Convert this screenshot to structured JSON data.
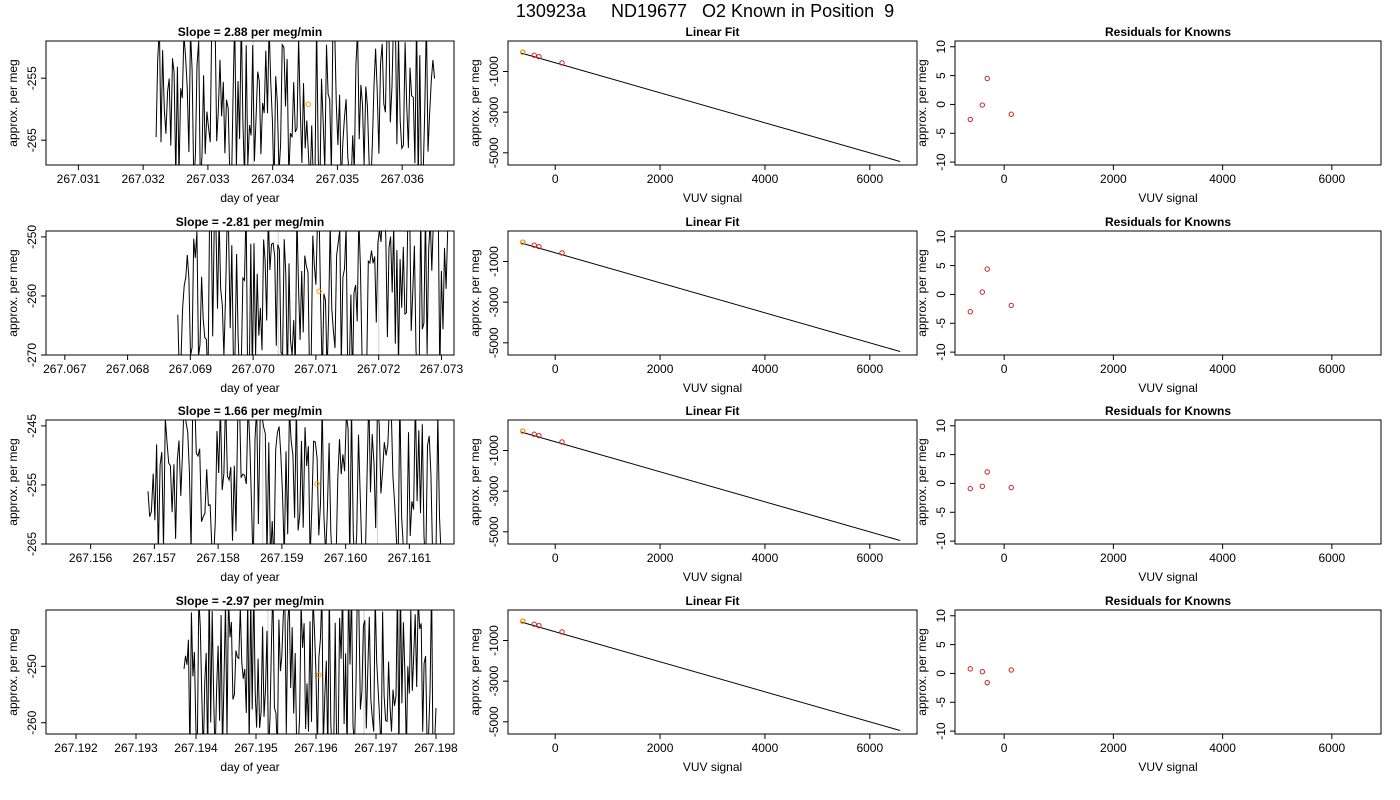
{
  "page": {
    "title": "130923a     ND19677   O2 Known in Position  9"
  },
  "colors": {
    "line": "#000000",
    "residual_point": "#cc2222",
    "highlight_point": "#ff9900",
    "vertical_marker": "#cfcfcf"
  },
  "chart_data": [
    {
      "row": 1,
      "type": "line",
      "title": "Slope =  2.88  per meg/min",
      "xlabel": "day of year",
      "ylabel": "approx. per meg",
      "xlim": [
        267.0305,
        267.0368
      ],
      "ylim": [
        -269,
        -249
      ],
      "xticks": [
        "267.031",
        "267.032",
        "267.033",
        "267.034",
        "267.035",
        "267.036"
      ],
      "yticks": [
        "-255",
        "-265"
      ],
      "x_start": 267.0322,
      "x_end": 267.0365,
      "markers_x": [
        267.0337
      ],
      "highlight": {
        "x": 267.03455,
        "y": -259.2
      }
    },
    {
      "row": 2,
      "type": "line",
      "title": "Slope =  -2.81  per meg/min",
      "xlabel": "day of year",
      "ylabel": "approx. per meg",
      "xlim": [
        267.0667,
        267.0732
      ],
      "ylim": [
        -270,
        -249
      ],
      "xticks": [
        "267.067",
        "267.068",
        "267.069",
        "267.070",
        "267.071",
        "267.072",
        "267.073"
      ],
      "yticks": [
        "-250",
        "-260",
        "-270"
      ],
      "x_start": 267.0688,
      "x_end": 267.0731,
      "markers_x": [
        267.0704,
        267.072
      ],
      "highlight": {
        "x": 267.07105,
        "y": -259.2
      }
    },
    {
      "row": 3,
      "type": "line",
      "title": "Slope =  1.66  per meg/min",
      "xlabel": "day of year",
      "ylabel": "approx. per meg",
      "xlim": [
        267.1553,
        267.1617
      ],
      "ylim": [
        -265,
        -244
      ],
      "xticks": [
        "267.156",
        "267.157",
        "267.158",
        "267.159",
        "267.160",
        "267.161"
      ],
      "yticks": [
        "-245",
        "-255",
        "-265"
      ],
      "x_start": 267.1569,
      "x_end": 267.1615,
      "markers_x": [
        267.1587,
        267.1605
      ],
      "highlight": {
        "x": 267.15955,
        "y": -254.8
      }
    },
    {
      "row": 4,
      "type": "line",
      "title": "Slope =  -2.97  per meg/min",
      "xlabel": "day of year",
      "ylabel": "approx. per meg",
      "xlim": [
        267.1915,
        267.1983
      ],
      "ylim": [
        -262,
        -240
      ],
      "xticks": [
        "267.192",
        "267.193",
        "267.194",
        "267.195",
        "267.196",
        "267.197",
        "267.198"
      ],
      "yticks": [
        "-250",
        "-260"
      ],
      "x_start": 267.1938,
      "x_end": 267.198,
      "markers_x": [
        267.1952,
        267.1968
      ],
      "highlight": {
        "x": 267.19605,
        "y": -251.5
      }
    },
    {
      "row": 1,
      "type": "scatter",
      "title": "Linear Fit",
      "xlabel": "VUV signal",
      "ylabel": "approx. per meg",
      "xlim": [
        -900,
        6900
      ],
      "ylim": [
        -5600,
        500
      ],
      "xticks": [
        0,
        2000,
        4000,
        6000
      ],
      "yticks": [
        -1000,
        -3000,
        -5000
      ],
      "fit_line": {
        "x": [
          -650,
          6580
        ],
        "y": [
          -90,
          -5430
        ]
      },
      "points": {
        "x": [
          -620,
          -400,
          -310,
          130
        ],
        "y": [
          -50,
          -200,
          -270,
          -580
        ]
      },
      "highlight": {
        "x": -620,
        "y": -50
      }
    },
    {
      "row": 2,
      "type": "scatter",
      "title": "Linear Fit",
      "xlabel": "VUV signal",
      "ylabel": "approx. per meg",
      "xlim": [
        -900,
        6900
      ],
      "ylim": [
        -5600,
        500
      ],
      "xticks": [
        0,
        2000,
        4000,
        6000
      ],
      "yticks": [
        -1000,
        -3000,
        -5000
      ],
      "fit_line": {
        "x": [
          -650,
          6580
        ],
        "y": [
          -90,
          -5430
        ]
      },
      "points": {
        "x": [
          -620,
          -400,
          -310,
          130
        ],
        "y": [
          -50,
          -200,
          -270,
          -580
        ]
      },
      "highlight": {
        "x": -620,
        "y": -50
      }
    },
    {
      "row": 3,
      "type": "scatter",
      "title": "Linear Fit",
      "xlabel": "VUV signal",
      "ylabel": "approx. per meg",
      "xlim": [
        -900,
        6900
      ],
      "ylim": [
        -5600,
        500
      ],
      "xticks": [
        0,
        2000,
        4000,
        6000
      ],
      "yticks": [
        -1000,
        -3000,
        -5000
      ],
      "fit_line": {
        "x": [
          -650,
          6580
        ],
        "y": [
          -90,
          -5430
        ]
      },
      "points": {
        "x": [
          -620,
          -400,
          -310,
          130
        ],
        "y": [
          -50,
          -200,
          -270,
          -580
        ]
      },
      "highlight": {
        "x": -620,
        "y": -50
      }
    },
    {
      "row": 4,
      "type": "scatter",
      "title": "Linear Fit",
      "xlabel": "VUV signal",
      "ylabel": "approx. per meg",
      "xlim": [
        -900,
        6900
      ],
      "ylim": [
        -5600,
        500
      ],
      "xticks": [
        0,
        2000,
        4000,
        6000
      ],
      "yticks": [
        -1000,
        -3000,
        -5000
      ],
      "fit_line": {
        "x": [
          -650,
          6580
        ],
        "y": [
          -90,
          -5430
        ]
      },
      "points": {
        "x": [
          -620,
          -400,
          -310,
          130
        ],
        "y": [
          -50,
          -200,
          -270,
          -580
        ]
      },
      "highlight": {
        "x": -620,
        "y": -50
      }
    },
    {
      "row": 1,
      "type": "scatter",
      "title": "Residuals for Knowns",
      "xlabel": "VUV signal",
      "ylabel": "approx. per meg",
      "xlim": [
        -900,
        6900
      ],
      "ylim": [
        -10.5,
        11
      ],
      "xticks": [
        0,
        2000,
        4000,
        6000
      ],
      "yticks": [
        10,
        5,
        0,
        -5,
        -10
      ],
      "points": {
        "x": [
          -620,
          -400,
          -310,
          130
        ],
        "y": [
          -2.6,
          -0.1,
          4.5,
          -1.7
        ]
      }
    },
    {
      "row": 2,
      "type": "scatter",
      "title": "Residuals for Knowns",
      "xlabel": "VUV signal",
      "ylabel": "approx. per meg",
      "xlim": [
        -900,
        6900
      ],
      "ylim": [
        -10.5,
        11
      ],
      "xticks": [
        0,
        2000,
        4000,
        6000
      ],
      "yticks": [
        10,
        5,
        0,
        -5,
        -10
      ],
      "points": {
        "x": [
          -620,
          -400,
          -310,
          130
        ],
        "y": [
          -3.0,
          0.4,
          4.4,
          -1.9
        ]
      }
    },
    {
      "row": 3,
      "type": "scatter",
      "title": "Residuals for Knowns",
      "xlabel": "VUV signal",
      "ylabel": "approx. per meg",
      "xlim": [
        -900,
        6900
      ],
      "ylim": [
        -10.5,
        11
      ],
      "xticks": [
        0,
        2000,
        4000,
        6000
      ],
      "yticks": [
        10,
        5,
        0,
        -5,
        -10
      ],
      "points": {
        "x": [
          -620,
          -400,
          -310,
          130
        ],
        "y": [
          -0.9,
          -0.5,
          2.0,
          -0.7
        ]
      }
    },
    {
      "row": 4,
      "type": "scatter",
      "title": "Residuals for Knowns",
      "xlabel": "VUV signal",
      "ylabel": "approx. per meg",
      "xlim": [
        -900,
        6900
      ],
      "ylim": [
        -10.5,
        11
      ],
      "xticks": [
        0,
        2000,
        4000,
        6000
      ],
      "yticks": [
        10,
        5,
        0,
        -5,
        -10
      ],
      "points": {
        "x": [
          -620,
          -400,
          -310,
          130
        ],
        "y": [
          0.8,
          0.3,
          -1.6,
          0.6
        ]
      }
    }
  ]
}
